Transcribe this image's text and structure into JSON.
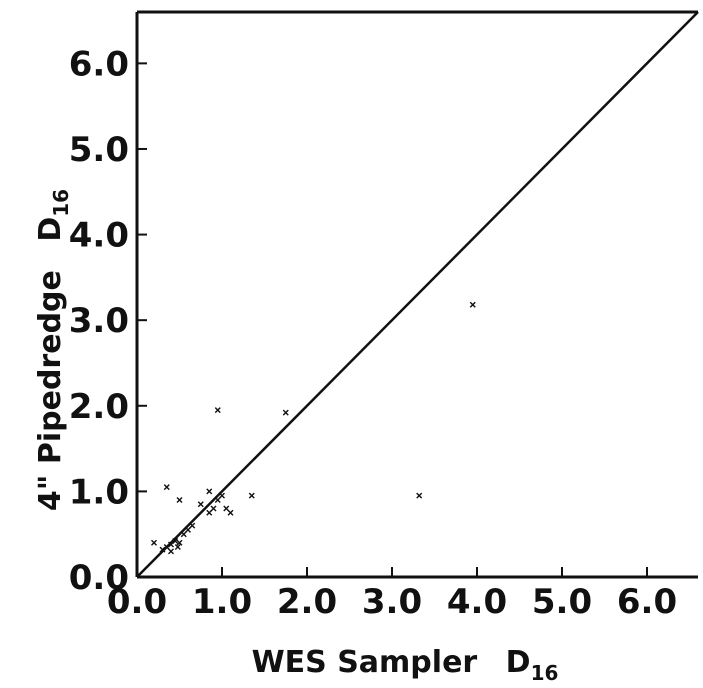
{
  "chart_data": {
    "type": "scatter",
    "title": "",
    "xlabel": "WES Sampler",
    "xlabel_subscript": "16",
    "xlabel_prefix_symbol": "D",
    "ylabel": "4\"  Pipedredge",
    "ylabel_prefix_symbol": "D",
    "ylabel_subscript": "16",
    "xlim": [
      0.0,
      6.6
    ],
    "ylim": [
      0.0,
      6.6
    ],
    "x_ticks": [
      "0.0",
      "1.0",
      "2.0",
      "3.0",
      "4.0",
      "5.0",
      "6.0"
    ],
    "y_ticks": [
      "0.0",
      "1.0",
      "2.0",
      "3.0",
      "4.0",
      "5.0",
      "6.0"
    ],
    "grid": false,
    "legend": "none",
    "reference_line": "y = x",
    "marker": "x",
    "color": "#111111",
    "points": [
      {
        "x": 0.3,
        "y": 0.32
      },
      {
        "x": 0.35,
        "y": 0.35
      },
      {
        "x": 0.4,
        "y": 0.38
      },
      {
        "x": 0.45,
        "y": 0.42
      },
      {
        "x": 0.5,
        "y": 0.4
      },
      {
        "x": 0.55,
        "y": 0.5
      },
      {
        "x": 0.6,
        "y": 0.55
      },
      {
        "x": 0.65,
        "y": 0.6
      },
      {
        "x": 0.4,
        "y": 0.3
      },
      {
        "x": 0.48,
        "y": 0.35
      },
      {
        "x": 0.2,
        "y": 0.4
      },
      {
        "x": 0.75,
        "y": 0.85
      },
      {
        "x": 0.85,
        "y": 0.75
      },
      {
        "x": 0.9,
        "y": 0.8
      },
      {
        "x": 1.0,
        "y": 0.95
      },
      {
        "x": 0.95,
        "y": 0.9
      },
      {
        "x": 1.05,
        "y": 0.8
      },
      {
        "x": 1.1,
        "y": 0.75
      },
      {
        "x": 0.85,
        "y": 1.0
      },
      {
        "x": 0.5,
        "y": 0.9
      },
      {
        "x": 0.35,
        "y": 1.05
      },
      {
        "x": 1.35,
        "y": 0.95
      },
      {
        "x": 0.95,
        "y": 1.95
      },
      {
        "x": 1.75,
        "y": 1.92
      },
      {
        "x": 3.95,
        "y": 3.18
      },
      {
        "x": 3.32,
        "y": 0.95
      }
    ]
  }
}
